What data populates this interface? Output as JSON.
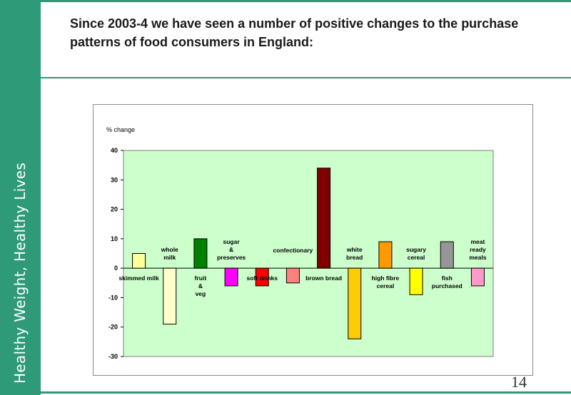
{
  "sidebar": {
    "title": "Healthy Weight, Healthy Lives",
    "color": "#2e9a78"
  },
  "heading": "Since 2003-4 we have seen a number of positive changes to the purchase patterns of food consumers in England:",
  "page_number": "14",
  "chart_data": {
    "type": "bar",
    "ylabel": "%  change",
    "ylim": [
      -30,
      40
    ],
    "yticks": [
      40,
      30,
      20,
      10,
      0,
      -10,
      -20,
      -30
    ],
    "grid": false,
    "plot_background": "#ccffcc",
    "categories": [
      "skimmed milk",
      "whole milk",
      "fruit & veg",
      "sugar & preserves",
      "soft drinks",
      "confectionary",
      "brown bread",
      "white bread",
      "high fibre cereal",
      "sugary cereal",
      "fish purchased",
      "meat ready meals"
    ],
    "values": [
      5,
      -19,
      10,
      -6,
      -6,
      -5,
      34,
      -24,
      9,
      -9,
      9,
      -6
    ],
    "colors": [
      "#ffff99",
      "#ffffcc",
      "#008000",
      "#ff00ff",
      "#ff0000",
      "#ff8080",
      "#800000",
      "#ffcc00",
      "#ff9900",
      "#ffff00",
      "#969696",
      "#ff99cc"
    ]
  }
}
